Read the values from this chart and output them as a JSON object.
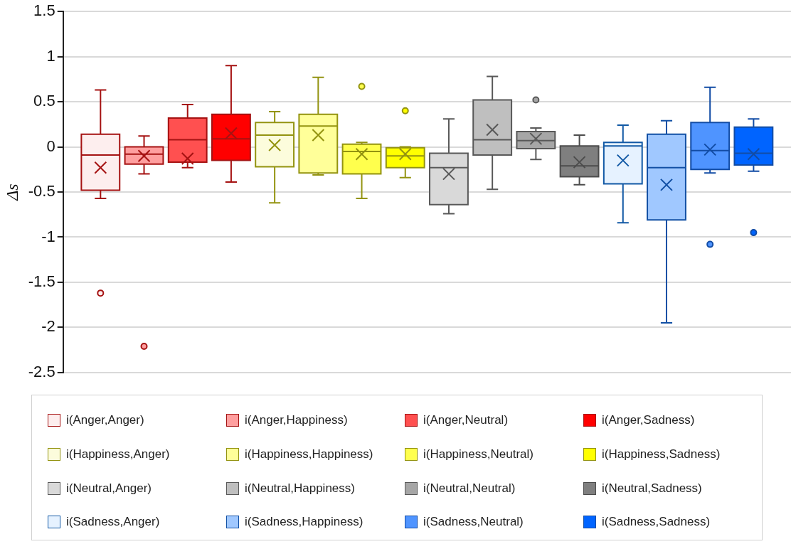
{
  "chart_data": {
    "type": "box",
    "ylabel": "Δs",
    "categories": [
      null
    ],
    "ylim": [
      -2.5,
      1.5
    ],
    "yticks": [
      -2.5,
      -2,
      -1.5,
      -1,
      -0.5,
      0,
      0.5,
      1,
      1.5
    ],
    "grid": "y",
    "tick_labels": "y",
    "legend": "bottom",
    "series": [
      {
        "name": "i(Anger,Anger)",
        "color": "#fdeeee",
        "boxes": [
          {
            "low": -0.57,
            "q1": -0.48,
            "median": -0.09,
            "q3": 0.14,
            "high": 0.63,
            "mean": -0.23,
            "outliers": [
              -1.62
            ]
          }
        ]
      },
      {
        "name": "i(Anger,Happiness)",
        "color": "#ff9f9f",
        "boxes": [
          {
            "low": -0.3,
            "q1": -0.19,
            "median": -0.08,
            "q3": 0.0,
            "high": 0.12,
            "mean": -0.1,
            "outliers": [
              -2.21
            ]
          }
        ]
      },
      {
        "name": "i(Anger,Neutral)",
        "color": "#ff5050",
        "boxes": [
          {
            "low": -0.23,
            "q1": -0.17,
            "median": 0.08,
            "q3": 0.32,
            "high": 0.47,
            "mean": -0.13
          }
        ]
      },
      {
        "name": "i(Anger,Sadness)",
        "color": "#ff0000",
        "boxes": [
          {
            "low": -0.39,
            "q1": -0.15,
            "median": 0.09,
            "q3": 0.36,
            "high": 0.9,
            "mean": 0.15
          }
        ]
      },
      {
        "name": "i(Happiness,Anger)",
        "color": "#fcfcdc",
        "boxes": [
          {
            "low": -0.62,
            "q1": -0.22,
            "median": 0.13,
            "q3": 0.27,
            "high": 0.39,
            "mean": 0.02
          }
        ]
      },
      {
        "name": "i(Happiness,Happiness)",
        "color": "#ffff99",
        "boxes": [
          {
            "low": -0.31,
            "q1": -0.29,
            "median": 0.23,
            "q3": 0.36,
            "high": 0.77,
            "mean": 0.13
          }
        ]
      },
      {
        "name": "i(Happiness,Neutral)",
        "color": "#ffff4d",
        "boxes": [
          {
            "low": -0.57,
            "q1": -0.3,
            "median": -0.05,
            "q3": 0.03,
            "high": 0.05,
            "mean": -0.08,
            "outliers": [
              0.67
            ]
          }
        ]
      },
      {
        "name": "i(Happiness,Sadness)",
        "color": "#ffff00",
        "boxes": [
          {
            "low": -0.34,
            "q1": -0.23,
            "median": -0.1,
            "q3": -0.01,
            "high": 0.0,
            "mean": -0.08,
            "outliers": [
              0.4
            ]
          }
        ]
      },
      {
        "name": "i(Neutral,Anger)",
        "color": "#d9d9d9",
        "boxes": [
          {
            "low": -0.74,
            "q1": -0.64,
            "median": -0.23,
            "q3": -0.07,
            "high": 0.31,
            "mean": -0.3
          }
        ]
      },
      {
        "name": "i(Neutral,Happiness)",
        "color": "#bfbfbf",
        "boxes": [
          {
            "low": -0.47,
            "q1": -0.09,
            "median": 0.08,
            "q3": 0.52,
            "high": 0.78,
            "mean": 0.19
          }
        ]
      },
      {
        "name": "i(Neutral,Neutral)",
        "color": "#a6a6a6",
        "boxes": [
          {
            "low": -0.14,
            "q1": -0.02,
            "median": 0.07,
            "q3": 0.17,
            "high": 0.21,
            "mean": 0.09,
            "outliers": [
              0.52
            ]
          }
        ]
      },
      {
        "name": "i(Neutral,Sadness)",
        "color": "#7f7f7f",
        "boxes": [
          {
            "low": -0.42,
            "q1": -0.33,
            "median": -0.21,
            "q3": 0.01,
            "high": 0.13,
            "mean": -0.17
          }
        ]
      },
      {
        "name": "i(Sadness,Anger)",
        "color": "#e6f2ff",
        "boxes": [
          {
            "low": -0.84,
            "q1": -0.41,
            "median": 0.01,
            "q3": 0.05,
            "high": 0.24,
            "mean": -0.15
          }
        ]
      },
      {
        "name": "i(Sadness,Happiness)",
        "color": "#a0c8ff",
        "boxes": [
          {
            "low": -1.95,
            "q1": -0.81,
            "median": -0.23,
            "q3": 0.14,
            "high": 0.29,
            "mean": -0.42
          }
        ]
      },
      {
        "name": "i(Sadness,Neutral)",
        "color": "#4f94ff",
        "boxes": [
          {
            "low": -0.29,
            "q1": -0.25,
            "median": -0.04,
            "q3": 0.27,
            "high": 0.66,
            "mean": -0.03,
            "outliers": [
              -1.08
            ]
          }
        ]
      },
      {
        "name": "i(Sadness,Sadness)",
        "color": "#0064ff",
        "boxes": [
          {
            "low": -0.27,
            "q1": -0.2,
            "median": -0.07,
            "q3": 0.22,
            "high": 0.31,
            "mean": -0.08,
            "outliers": [
              -0.95
            ]
          }
        ]
      }
    ]
  }
}
